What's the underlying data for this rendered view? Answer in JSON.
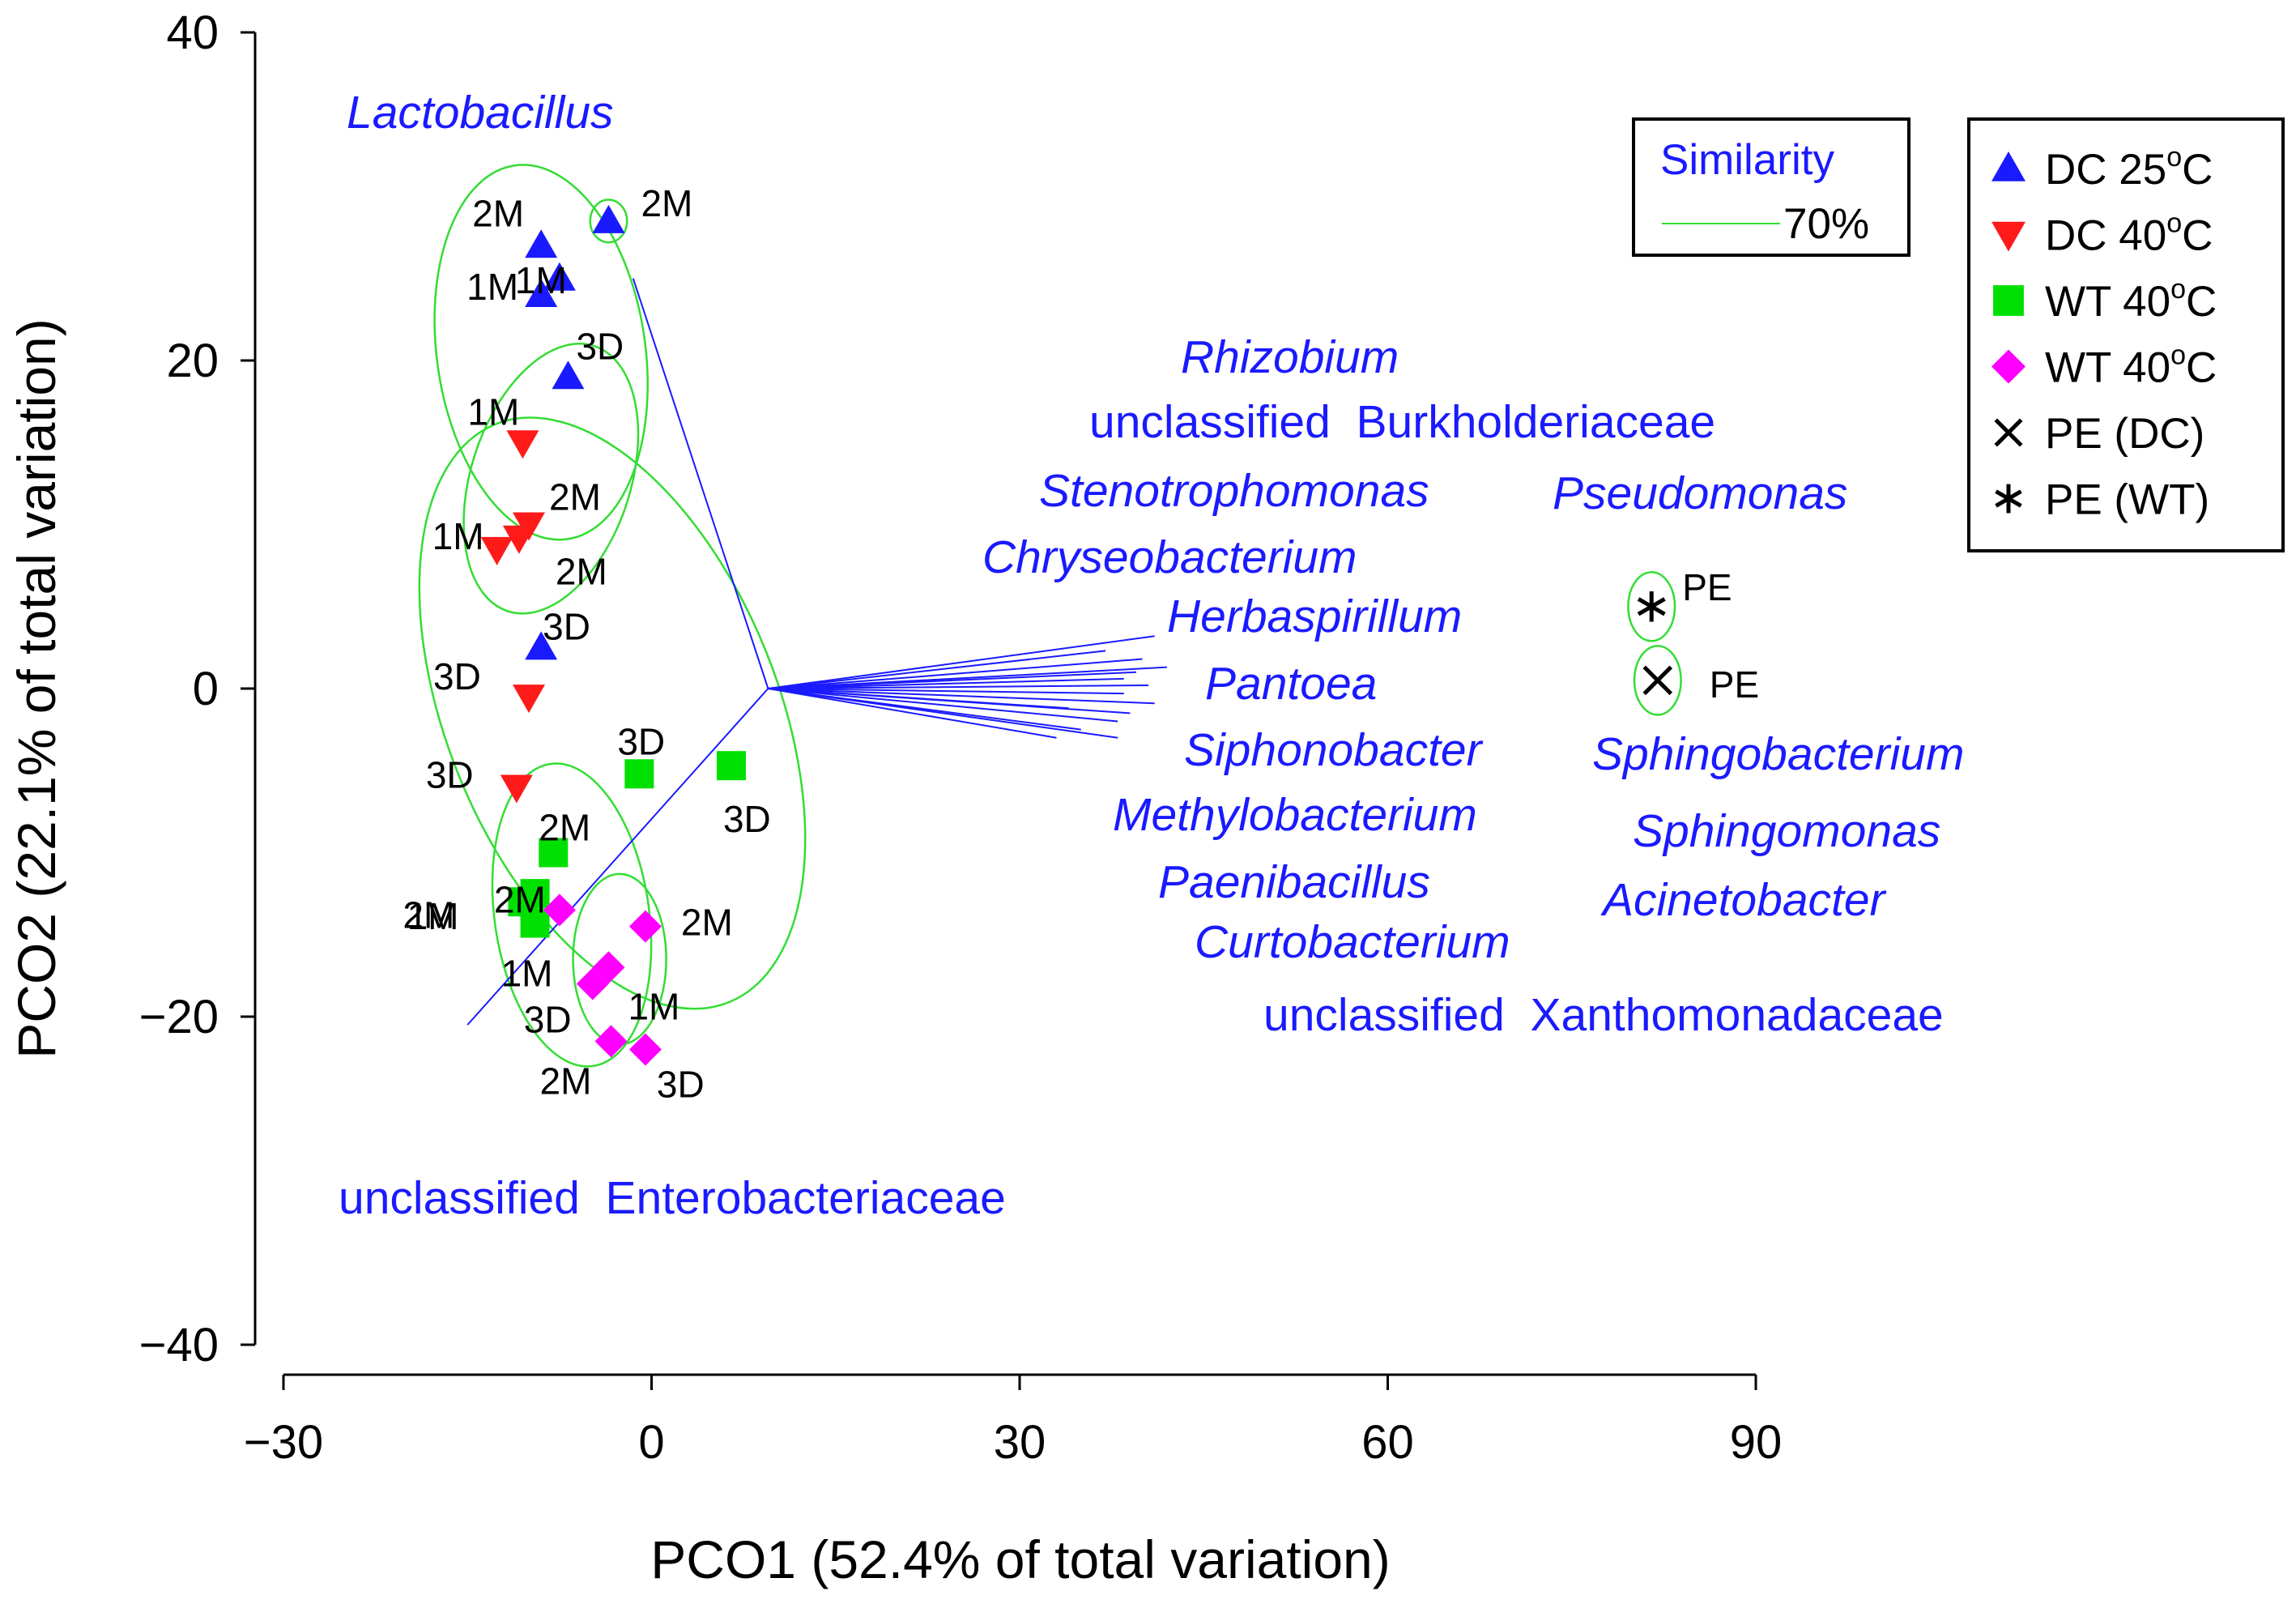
{
  "chart_data": {
    "type": "scatter",
    "xlabel": "PCO1 (52.4% of total variation)",
    "ylabel": "PCO2 (22.1% of total variation)",
    "xlim": [
      -30,
      90
    ],
    "ylim": [
      -40,
      40
    ],
    "xticks": [
      -30,
      0,
      30,
      60,
      90
    ],
    "yticks": [
      -40,
      -20,
      0,
      20,
      40
    ],
    "xtick_labels": [
      "−30",
      "0",
      "30",
      "60",
      "90"
    ],
    "ytick_labels": [
      "−40",
      "−20",
      "0",
      "20",
      "40"
    ],
    "series": [
      {
        "name": "DC 25oC",
        "marker": "triangle-up",
        "color": "#1a1aff",
        "points": [
          {
            "x": -3.5,
            "y": 28.5,
            "label": "2M"
          },
          {
            "x": -9,
            "y": 27,
            "label": "2M"
          },
          {
            "x": -7.5,
            "y": 25,
            "label": "1M"
          },
          {
            "x": -9,
            "y": 24,
            "label": "1M"
          },
          {
            "x": -6.8,
            "y": 19,
            "label": "3D"
          },
          {
            "x": -9,
            "y": 2.5,
            "label": "3D"
          }
        ]
      },
      {
        "name": "DC 40oC",
        "marker": "triangle-down",
        "color": "#ff1a1a",
        "points": [
          {
            "x": -10.5,
            "y": 15,
            "label": "1M"
          },
          {
            "x": -10,
            "y": 10,
            "label": "2M"
          },
          {
            "x": -10.8,
            "y": 9.2,
            "label": "2M"
          },
          {
            "x": -12.6,
            "y": 8.5,
            "label": "1M"
          },
          {
            "x": -10,
            "y": -0.5,
            "label": "3D"
          },
          {
            "x": -11,
            "y": -6,
            "label": "3D"
          }
        ]
      },
      {
        "name": "WT 40oC",
        "marker": "square",
        "color": "#00e000",
        "points": [
          {
            "x": -1,
            "y": -5.2,
            "label": "3D"
          },
          {
            "x": 6.5,
            "y": -4.7,
            "label": "3D"
          },
          {
            "x": -8,
            "y": -10,
            "label": "2M"
          },
          {
            "x": -9.5,
            "y": -12.5,
            "label": "1M"
          },
          {
            "x": -10.5,
            "y": -13,
            "label": "2M"
          },
          {
            "x": -9.5,
            "y": -14.3,
            "label": "1M"
          }
        ]
      },
      {
        "name": "WT 40oC",
        "marker": "diamond",
        "color": "#ff00ff",
        "points": [
          {
            "x": -7.5,
            "y": -13.5,
            "label": "2M"
          },
          {
            "x": -0.5,
            "y": -14.5,
            "label": "2M"
          },
          {
            "x": -3.5,
            "y": -17,
            "label": "1M"
          },
          {
            "x": -4.8,
            "y": -18,
            "label": "3D"
          },
          {
            "x": -3.3,
            "y": -21.5,
            "label": "2M"
          },
          {
            "x": -0.5,
            "y": -22,
            "label": "3D"
          }
        ]
      },
      {
        "name": "PE (DC)",
        "marker": "x",
        "color": "#000000",
        "points": [
          {
            "x": 82,
            "y": 0.5,
            "label": "PE"
          }
        ]
      },
      {
        "name": "PE (WT)",
        "marker": "asterisk",
        "color": "#000000",
        "points": [
          {
            "x": 81.5,
            "y": 5,
            "label": "PE"
          }
        ]
      }
    ],
    "vectors_origin": {
      "x": 9.5,
      "y": 0
    },
    "vectors": [
      {
        "name": "Lactobacillus",
        "x": -1.5,
        "y": 25
      },
      {
        "name": "unclassified Enterobacteriaceae",
        "x": -15,
        "y": -20.5
      },
      {
        "name": "Rhizobium",
        "x": 41,
        "y": 3.2
      },
      {
        "name": "unclassified Burkholderiaceae",
        "x": 42,
        "y": 1.3
      },
      {
        "name": "Stenotrophomonas",
        "x": 37,
        "y": 2.3
      },
      {
        "name": "Pseudomonas",
        "x": 40,
        "y": 1.8
      },
      {
        "name": "Chryseobacterium",
        "x": 39.5,
        "y": 1.0
      },
      {
        "name": "Herbaspirillum",
        "x": 38.5,
        "y": 0.6
      },
      {
        "name": "Pantoea",
        "x": 40.5,
        "y": 0.2
      },
      {
        "name": "Siphonobacter",
        "x": 38.5,
        "y": -0.3
      },
      {
        "name": "Sphingobacterium",
        "x": 41,
        "y": -0.9
      },
      {
        "name": "Methylobacterium",
        "x": 39,
        "y": -1.5
      },
      {
        "name": "Sphingomonas",
        "x": 38,
        "y": -2.0
      },
      {
        "name": "Acinetobacter",
        "x": 38,
        "y": -3.0
      },
      {
        "name": "Paenibacillus",
        "x": 35,
        "y": -2.5
      },
      {
        "name": "Curtobacterium",
        "x": 33,
        "y": -3.0
      },
      {
        "name": "unclassified Xanthomonadaceae",
        "x": 34,
        "y": -1.2
      }
    ],
    "similarity_ellipses": [
      {
        "cx": -3.5,
        "cy": 28.5,
        "rx": 1.5,
        "ry": 1.3,
        "rot": 0
      },
      {
        "cx": -9,
        "cy": 20.5,
        "rx": 8.5,
        "ry": 11.5,
        "rot": -8
      },
      {
        "cx": -8.2,
        "cy": 12.8,
        "rx": 6.5,
        "ry": 8.5,
        "rot": 18
      },
      {
        "cx": -3.2,
        "cy": -1.5,
        "rx": 13.5,
        "ry": 19,
        "rot": -22
      },
      {
        "cx": -6.5,
        "cy": -13.8,
        "rx": 6.3,
        "ry": 9.3,
        "rot": -8
      },
      {
        "cx": -2.6,
        "cy": -16.5,
        "rx": 3.8,
        "ry": 5.2,
        "rot": 0
      },
      {
        "cx": 81.5,
        "cy": 5,
        "rx": 1.9,
        "ry": 2.1,
        "rot": 0
      },
      {
        "cx": 82,
        "cy": 0.5,
        "rx": 1.9,
        "ry": 2.1,
        "rot": 0
      }
    ],
    "genus_labels": [
      {
        "text": "Lactobacillus",
        "italic": true
      },
      {
        "text": "Rhizobium",
        "italic": true
      },
      {
        "text": "unclassified  Burkholderiaceae",
        "italic": false
      },
      {
        "text": "Stenotrophomonas",
        "italic": true
      },
      {
        "text": "Pseudomonas",
        "italic": true
      },
      {
        "text": "Chryseobacterium",
        "italic": true
      },
      {
        "text": "Herbaspirillum",
        "italic": true
      },
      {
        "text": "Pantoea",
        "italic": true
      },
      {
        "text": "Siphonobacter",
        "italic": true
      },
      {
        "text": "Sphingobacterium",
        "italic": true
      },
      {
        "text": "Methylobacterium",
        "italic": true
      },
      {
        "text": "Sphingomonas",
        "italic": true
      },
      {
        "text": "Paenibacillus",
        "italic": true
      },
      {
        "text": "Acinetobacter",
        "italic": true
      },
      {
        "text": "Curtobacterium",
        "italic": true
      },
      {
        "text": "unclassified  Xanthomonadaceae",
        "italic": false
      },
      {
        "text": "unclassified  Enterobacteriaceae",
        "italic": false
      }
    ],
    "similarity_legend": {
      "title": "Similarity",
      "value": "70%",
      "line_color": "#33dd33"
    },
    "legend": {
      "position": "top-right",
      "entries": [
        {
          "base": "DC 25",
          "sup": "o",
          "unit": "C",
          "marker": "triangle-up",
          "color": "#1a1aff"
        },
        {
          "base": "DC 40",
          "sup": "o",
          "unit": "C",
          "marker": "triangle-down",
          "color": "#ff1a1a"
        },
        {
          "base": "WT 40",
          "sup": "o",
          "unit": "C",
          "marker": "square",
          "color": "#00e000"
        },
        {
          "base": "WT 40",
          "sup": "o",
          "unit": "C",
          "marker": "diamond",
          "color": "#ff00ff"
        },
        {
          "base": "PE (DC)",
          "sup": "",
          "unit": "",
          "marker": "x",
          "color": "#000000"
        },
        {
          "base": "PE (WT)",
          "sup": "",
          "unit": "",
          "marker": "asterisk",
          "color": "#000000"
        }
      ]
    },
    "colors": {
      "vector": "#1a1aff",
      "ellipse": "#33dd33",
      "axis": "#000000"
    }
  }
}
